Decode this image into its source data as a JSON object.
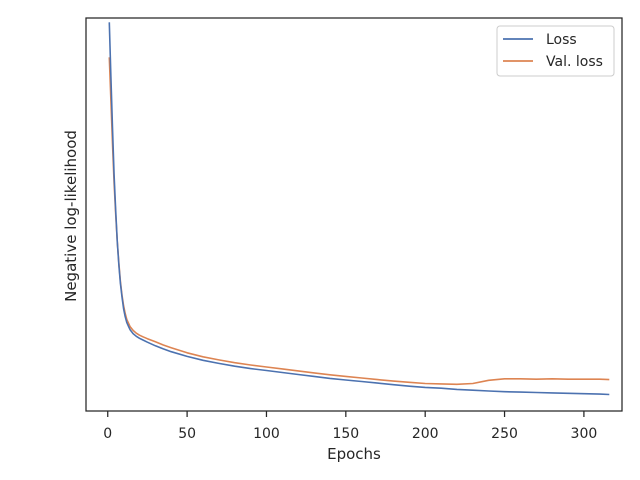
{
  "chart_data": {
    "type": "line",
    "xlabel": "Epochs",
    "ylabel": "Negative log-likelihood",
    "xlim": [
      -13.7,
      324
    ],
    "ylim": [
      0,
      1
    ],
    "xticks": [
      0,
      50,
      100,
      150,
      200,
      250,
      300
    ],
    "show_yticklabels": false,
    "grid": false,
    "legend_position": "top-right",
    "series": [
      {
        "name": "Loss",
        "color": "#4c72b0",
        "x": [
          1,
          2,
          3,
          4,
          5,
          6,
          7,
          8,
          9,
          10,
          11,
          12,
          14,
          16,
          18,
          20,
          22,
          25,
          30,
          35,
          40,
          50,
          60,
          70,
          80,
          90,
          100,
          110,
          120,
          130,
          140,
          150,
          160,
          170,
          180,
          190,
          200,
          210,
          220,
          230,
          240,
          250,
          260,
          270,
          280,
          290,
          300,
          310,
          316
        ],
        "y": [
          0.989,
          0.85,
          0.72,
          0.6,
          0.51,
          0.43,
          0.37,
          0.325,
          0.29,
          0.26,
          0.24,
          0.225,
          0.207,
          0.197,
          0.19,
          0.185,
          0.181,
          0.175,
          0.166,
          0.158,
          0.151,
          0.139,
          0.129,
          0.121,
          0.114,
          0.108,
          0.103,
          0.098,
          0.093,
          0.088,
          0.083,
          0.079,
          0.075,
          0.071,
          0.067,
          0.063,
          0.06,
          0.058,
          0.055,
          0.053,
          0.051,
          0.049,
          0.048,
          0.047,
          0.046,
          0.045,
          0.044,
          0.043,
          0.042
        ]
      },
      {
        "name": "Val. loss",
        "color": "#dd8452",
        "x": [
          1,
          2,
          3,
          4,
          5,
          6,
          7,
          8,
          9,
          10,
          11,
          12,
          14,
          16,
          18,
          20,
          22,
          25,
          30,
          35,
          40,
          50,
          60,
          70,
          80,
          90,
          100,
          110,
          120,
          130,
          140,
          150,
          160,
          170,
          180,
          190,
          200,
          210,
          220,
          230,
          240,
          250,
          260,
          270,
          280,
          290,
          300,
          310,
          316
        ],
        "y": [
          0.9,
          0.79,
          0.68,
          0.58,
          0.5,
          0.43,
          0.375,
          0.33,
          0.295,
          0.268,
          0.248,
          0.233,
          0.215,
          0.205,
          0.198,
          0.193,
          0.189,
          0.184,
          0.176,
          0.168,
          0.161,
          0.148,
          0.138,
          0.13,
          0.123,
          0.117,
          0.112,
          0.107,
          0.102,
          0.097,
          0.092,
          0.088,
          0.084,
          0.08,
          0.076,
          0.073,
          0.07,
          0.069,
          0.068,
          0.07,
          0.078,
          0.082,
          0.082,
          0.081,
          0.082,
          0.081,
          0.081,
          0.081,
          0.08
        ]
      }
    ]
  }
}
